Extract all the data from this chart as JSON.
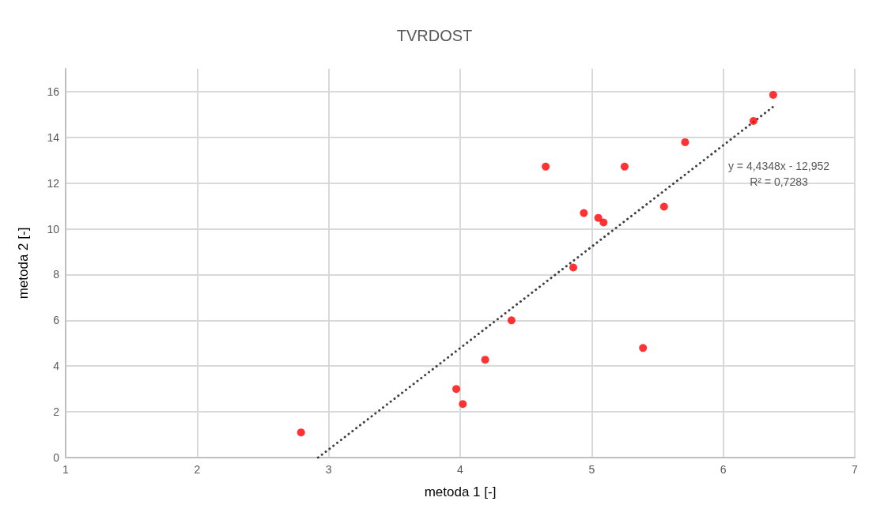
{
  "chart_data": {
    "type": "scatter",
    "title": "TVRDOST",
    "xlabel": "metoda 1 [-]",
    "ylabel": "metoda 2 [-]",
    "xlim": [
      1,
      7
    ],
    "xticks": [
      1,
      2,
      3,
      4,
      5,
      6,
      7
    ],
    "ylim": [
      0,
      17
    ],
    "yticks": [
      0,
      2,
      4,
      6,
      8,
      10,
      12,
      14,
      16
    ],
    "grid": true,
    "series": [
      {
        "color": "#ff0000",
        "marker": "circle",
        "x": [
          2.79,
          3.97,
          4.02,
          4.19,
          4.39,
          4.65,
          4.86,
          4.94,
          5.05,
          5.09,
          5.25,
          5.39,
          5.55,
          5.71,
          6.23,
          6.38
        ],
        "values": [
          1.1,
          3.0,
          2.34,
          4.28,
          6.0,
          12.72,
          8.31,
          10.69,
          10.48,
          10.28,
          12.72,
          4.79,
          10.97,
          13.79,
          14.72,
          15.86
        ]
      },
      {
        "type": "line",
        "color": "#404040",
        "marker": "none",
        "line_style": "dotted",
        "x": [
          2.92,
          6.38
        ],
        "values": [
          0,
          15.34
        ]
      }
    ],
    "annotations": [
      "y = 4,4348x - 12,952\nR² = 0,7283"
    ]
  }
}
